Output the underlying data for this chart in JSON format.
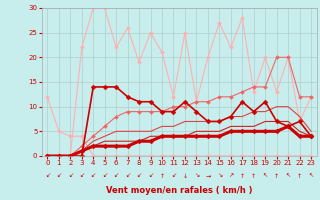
{
  "xlabel": "Vent moyen/en rafales ( km/h )",
  "xlim": [
    -0.5,
    23.5
  ],
  "ylim": [
    0,
    30
  ],
  "xticks": [
    0,
    1,
    2,
    3,
    4,
    5,
    6,
    7,
    8,
    9,
    10,
    11,
    12,
    13,
    14,
    15,
    16,
    17,
    18,
    19,
    20,
    21,
    22,
    23
  ],
  "yticks": [
    0,
    5,
    10,
    15,
    20,
    25,
    30
  ],
  "bg_color": "#c8eded",
  "grid_color": "#b0cccc",
  "series": [
    {
      "x": [
        0,
        1,
        2,
        3,
        4,
        5,
        6,
        7,
        8,
        9,
        10,
        11,
        12,
        13,
        14,
        15,
        16,
        17,
        18,
        19,
        20,
        21,
        22,
        23
      ],
      "y": [
        0,
        0,
        0,
        22,
        30,
        30,
        22,
        26,
        19,
        25,
        21,
        12,
        25,
        11,
        20,
        27,
        22,
        28,
        13,
        20,
        13,
        20,
        7,
        12
      ],
      "color": "#ffb0b0",
      "lw": 0.8,
      "marker": "D",
      "ms": 2.0,
      "alpha": 1.0
    },
    {
      "x": [
        0,
        1,
        2,
        3,
        4,
        5,
        6,
        7,
        8,
        9,
        10,
        11,
        12,
        13,
        14,
        15,
        16,
        17,
        18,
        19,
        20,
        21,
        22,
        23
      ],
      "y": [
        12,
        5,
        4,
        4,
        0,
        0,
        0,
        0,
        0,
        0,
        0,
        0,
        0,
        0,
        0,
        0,
        0,
        0,
        0,
        0,
        0,
        0,
        0,
        0
      ],
      "color": "#ffb0b0",
      "lw": 0.8,
      "marker": "D",
      "ms": 2.0,
      "alpha": 1.0
    },
    {
      "x": [
        0,
        1,
        2,
        3,
        4,
        5,
        6,
        7,
        8,
        9,
        10,
        11,
        12,
        13,
        14,
        15,
        16,
        17,
        18,
        19,
        20,
        21,
        22,
        23
      ],
      "y": [
        0,
        0,
        0,
        2,
        4,
        6,
        8,
        9,
        9,
        9,
        9,
        10,
        10,
        11,
        11,
        12,
        12,
        13,
        14,
        14,
        20,
        20,
        12,
        12
      ],
      "color": "#ee6666",
      "lw": 0.8,
      "marker": "D",
      "ms": 2.0,
      "alpha": 1.0
    },
    {
      "x": [
        0,
        1,
        2,
        3,
        4,
        5,
        6,
        7,
        8,
        9,
        10,
        11,
        12,
        13,
        14,
        15,
        16,
        17,
        18,
        19,
        20,
        21,
        22,
        23
      ],
      "y": [
        0,
        0,
        0,
        1,
        3,
        4,
        5,
        5,
        5,
        5,
        6,
        6,
        7,
        7,
        7,
        7,
        8,
        8,
        9,
        9,
        10,
        10,
        8,
        5
      ],
      "color": "#dd4444",
      "lw": 0.8,
      "marker": null,
      "ms": 0,
      "alpha": 1.0
    },
    {
      "x": [
        0,
        1,
        2,
        3,
        4,
        5,
        6,
        7,
        8,
        9,
        10,
        11,
        12,
        13,
        14,
        15,
        16,
        17,
        18,
        19,
        20,
        21,
        22,
        23
      ],
      "y": [
        0,
        0,
        0,
        1,
        2,
        3,
        3,
        3,
        3,
        4,
        4,
        4,
        4,
        5,
        5,
        5,
        6,
        6,
        6,
        7,
        7,
        7,
        5,
        4
      ],
      "color": "#cc2222",
      "lw": 0.8,
      "marker": null,
      "ms": 0,
      "alpha": 1.0
    },
    {
      "x": [
        0,
        1,
        2,
        3,
        4,
        5,
        6,
        7,
        8,
        9,
        10,
        11,
        12,
        13,
        14,
        15,
        16,
        17,
        18,
        19,
        20,
        21,
        22,
        23
      ],
      "y": [
        0,
        0,
        0,
        0,
        14,
        14,
        14,
        12,
        11,
        11,
        9,
        9,
        11,
        9,
        7,
        7,
        8,
        11,
        9,
        11,
        7,
        6,
        7,
        4
      ],
      "color": "#cc0000",
      "lw": 1.2,
      "marker": "D",
      "ms": 2.5,
      "alpha": 1.0
    },
    {
      "x": [
        0,
        1,
        2,
        3,
        4,
        5,
        6,
        7,
        8,
        9,
        10,
        11,
        12,
        13,
        14,
        15,
        16,
        17,
        18,
        19,
        20,
        21,
        22,
        23
      ],
      "y": [
        0,
        0,
        0,
        1,
        2,
        2,
        2,
        2,
        3,
        3,
        4,
        4,
        4,
        4,
        4,
        4,
        5,
        5,
        5,
        5,
        5,
        6,
        4,
        4
      ],
      "color": "#cc0000",
      "lw": 2.2,
      "marker": "D",
      "ms": 2.5,
      "alpha": 1.0
    }
  ],
  "wind_angles": [
    225,
    225,
    225,
    225,
    225,
    225,
    225,
    225,
    225,
    225,
    90,
    225,
    270,
    315,
    0,
    315,
    45,
    90,
    90,
    135,
    90,
    135,
    90,
    135
  ]
}
